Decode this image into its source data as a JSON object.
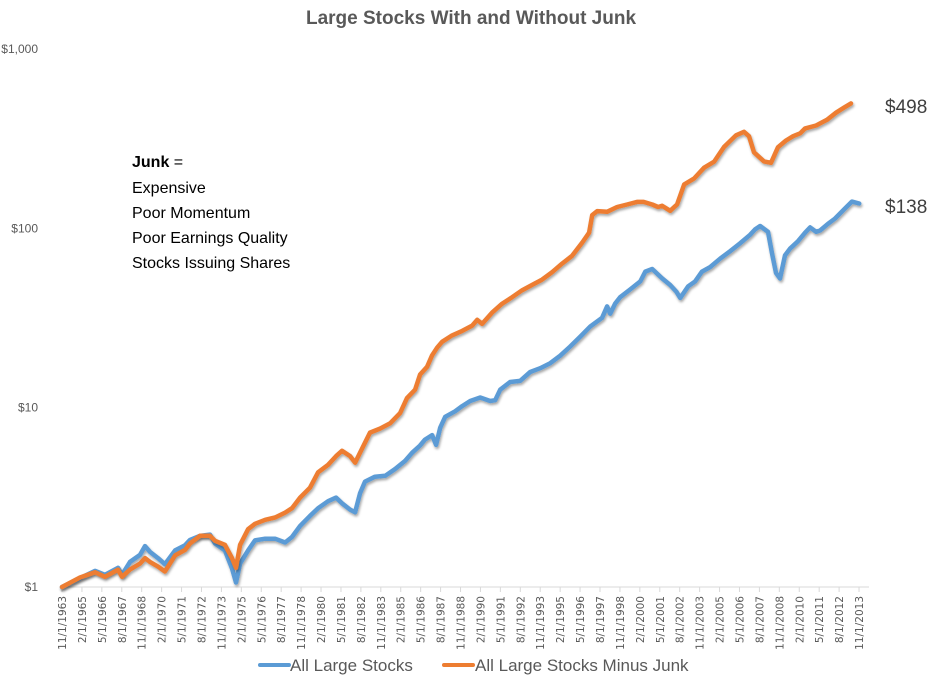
{
  "chart_data": {
    "type": "line",
    "title": "Large Stocks With and Without Junk",
    "xlabel": "",
    "ylabel": "",
    "yscale": "log",
    "ylim": [
      1,
      1000
    ],
    "xlim": [
      1963.83,
      2014.0
    ],
    "y_ticks": [
      {
        "value": 1,
        "label": "$1"
      },
      {
        "value": 10,
        "label": "$10"
      },
      {
        "value": 100,
        "label": "$100"
      },
      {
        "value": 1000,
        "label": "$1,000"
      }
    ],
    "x_tick_labels": [
      "11/1/1963",
      "2/1/1965",
      "5/1/1966",
      "8/1/1967",
      "11/1/1968",
      "2/1/1970",
      "5/1/1971",
      "8/1/1972",
      "11/1/1973",
      "2/1/1975",
      "5/1/1976",
      "8/1/1977",
      "11/1/1978",
      "2/1/1980",
      "5/1/1981",
      "8/1/1982",
      "11/1/1983",
      "2/1/1985",
      "5/1/1986",
      "8/1/1987",
      "11/1/1988",
      "2/1/1990",
      "5/1/1991",
      "8/1/1992",
      "11/1/1993",
      "2/1/1995",
      "5/1/1996",
      "8/1/1997",
      "11/1/1998",
      "2/1/2000",
      "5/1/2001",
      "8/1/2002",
      "11/1/2003",
      "2/1/2005",
      "5/1/2006",
      "8/1/2007",
      "11/1/2008",
      "2/1/2010",
      "5/1/2011",
      "8/1/2012",
      "11/1/2013"
    ],
    "grid": false,
    "legend_position": "bottom",
    "series": [
      {
        "name": "All Large Stocks",
        "color": "#5b9bd5",
        "end_label": "$138",
        "x": [
          1963.83,
          1964.95,
          1965.88,
          1966.5,
          1967.31,
          1967.56,
          1968.06,
          1968.68,
          1968.99,
          1969.3,
          1969.8,
          1970.23,
          1970.86,
          1971.48,
          1971.79,
          1972.41,
          1973.03,
          1973.34,
          1973.96,
          1974.4,
          1974.65,
          1974.9,
          1975.4,
          1975.83,
          1976.46,
          1977.08,
          1977.7,
          1978.13,
          1978.63,
          1979.25,
          1979.75,
          1980.37,
          1980.87,
          1981.24,
          1981.74,
          1982.05,
          1982.36,
          1982.67,
          1983.29,
          1983.92,
          1984.54,
          1985.16,
          1985.6,
          1986.09,
          1986.4,
          1986.84,
          1987.09,
          1987.34,
          1987.65,
          1988.27,
          1988.71,
          1989.21,
          1989.83,
          1990.45,
          1990.76,
          1991.07,
          1991.69,
          1992.31,
          1992.94,
          1993.56,
          1994.18,
          1994.8,
          1995.42,
          1996.05,
          1996.67,
          1997.41,
          1997.72,
          1997.91,
          1998.22,
          1998.53,
          1999.15,
          1999.78,
          2000.09,
          2000.52,
          2001.15,
          2001.64,
          2002.02,
          2002.26,
          2002.76,
          2003.19,
          2003.62,
          2004.12,
          2004.74,
          2005.36,
          2005.98,
          2006.61,
          2006.92,
          2007.23,
          2007.72,
          2007.97,
          2008.22,
          2008.47,
          2008.78,
          2009.09,
          2009.59,
          2010.03,
          2010.34,
          2010.71,
          2010.96,
          2011.45,
          2011.89,
          2012.51,
          2012.94,
          2013.39
        ],
        "y": [
          1.0,
          1.12,
          1.23,
          1.17,
          1.28,
          1.17,
          1.38,
          1.51,
          1.69,
          1.57,
          1.45,
          1.34,
          1.6,
          1.71,
          1.83,
          1.93,
          1.96,
          1.75,
          1.6,
          1.27,
          1.06,
          1.35,
          1.6,
          1.82,
          1.86,
          1.86,
          1.77,
          1.9,
          2.19,
          2.49,
          2.75,
          3.01,
          3.15,
          2.93,
          2.7,
          2.61,
          3.34,
          3.87,
          4.12,
          4.17,
          4.55,
          5.05,
          5.61,
          6.15,
          6.64,
          7.03,
          6.2,
          7.73,
          8.89,
          9.54,
          10.2,
          10.9,
          11.4,
          10.9,
          11.0,
          12.6,
          13.9,
          14.1,
          15.8,
          16.6,
          17.7,
          19.5,
          21.9,
          24.9,
          28.3,
          31.7,
          36.7,
          33.4,
          38.1,
          41.3,
          45.6,
          50.6,
          57.4,
          59.3,
          52.5,
          48.3,
          44.4,
          40.9,
          47.5,
          50.6,
          57.4,
          60.8,
          67.7,
          74.5,
          82.4,
          92.0,
          98.6,
          103.0,
          95.7,
          72.6,
          56.4,
          52.5,
          70.6,
          77.0,
          84.9,
          94.5,
          101.2,
          95.7,
          97.2,
          106.0,
          113.5,
          129.1,
          141.0,
          137.5
        ]
      },
      {
        "name": "All Large Stocks Minus Junk",
        "color": "#ed7d31",
        "end_label": "$498",
        "x": [
          1963.83,
          1964.95,
          1965.88,
          1966.5,
          1967.31,
          1967.56,
          1968.06,
          1968.68,
          1968.99,
          1969.3,
          1969.8,
          1970.23,
          1970.86,
          1971.48,
          1971.79,
          1972.41,
          1973.03,
          1973.34,
          1973.96,
          1974.4,
          1974.65,
          1974.9,
          1975.4,
          1975.83,
          1976.46,
          1977.08,
          1977.7,
          1978.13,
          1978.63,
          1979.25,
          1979.75,
          1980.37,
          1980.87,
          1981.24,
          1981.74,
          1982.05,
          1982.55,
          1982.98,
          1983.6,
          1984.22,
          1984.85,
          1985.28,
          1985.78,
          1986.09,
          1986.53,
          1986.84,
          1987.15,
          1987.46,
          1988.08,
          1988.71,
          1989.33,
          1989.64,
          1989.95,
          1990.57,
          1991.19,
          1991.81,
          1992.44,
          1993.06,
          1993.68,
          1994.3,
          1994.92,
          1995.54,
          1996.17,
          1996.6,
          1996.79,
          1997.1,
          1997.72,
          1998.34,
          1998.96,
          1999.58,
          1999.99,
          2000.52,
          2000.89,
          2001.14,
          2001.64,
          2002.07,
          2002.51,
          2003.13,
          2003.75,
          2004.37,
          2004.68,
          2004.99,
          2005.48,
          2005.73,
          2006.23,
          2006.54,
          2006.85,
          2007.47,
          2007.91,
          2008.34,
          2008.84,
          2009.28,
          2009.72,
          2010.03,
          2010.71,
          2011.39,
          2011.95,
          2012.44,
          2012.88
        ],
        "y": [
          1.0,
          1.13,
          1.21,
          1.14,
          1.25,
          1.14,
          1.25,
          1.35,
          1.45,
          1.38,
          1.3,
          1.22,
          1.5,
          1.61,
          1.75,
          1.93,
          1.93,
          1.81,
          1.72,
          1.45,
          1.28,
          1.72,
          2.1,
          2.25,
          2.37,
          2.44,
          2.6,
          2.75,
          3.15,
          3.58,
          4.36,
          4.8,
          5.37,
          5.75,
          5.37,
          4.93,
          6.07,
          7.26,
          7.64,
          8.17,
          9.33,
          11.3,
          12.6,
          15.3,
          16.9,
          19.6,
          21.6,
          23.3,
          25.3,
          26.8,
          28.7,
          30.9,
          29.3,
          33.9,
          38.0,
          41.3,
          45.2,
          48.4,
          51.8,
          56.9,
          63.6,
          70.3,
          83.3,
          94.5,
          118.5,
          124.8,
          123.6,
          131.5,
          135.8,
          140.5,
          140.5,
          135.8,
          131.5,
          133.6,
          125.3,
          136.0,
          175.8,
          189.9,
          217.8,
          235.3,
          258.8,
          284.6,
          314.0,
          330.2,
          345.5,
          326.3,
          265.4,
          236.1,
          232.1,
          283.3,
          308.9,
          326.3,
          338.7,
          360.6,
          374.4,
          403.0,
          441.1,
          470.8,
          497.5
        ]
      }
    ],
    "annotation": {
      "heading_bold": "Junk",
      "heading_rest": " =",
      "lines": [
        "Expensive",
        "Poor Momentum",
        "Poor Earnings Quality",
        "Stocks Issuing Shares"
      ]
    }
  }
}
